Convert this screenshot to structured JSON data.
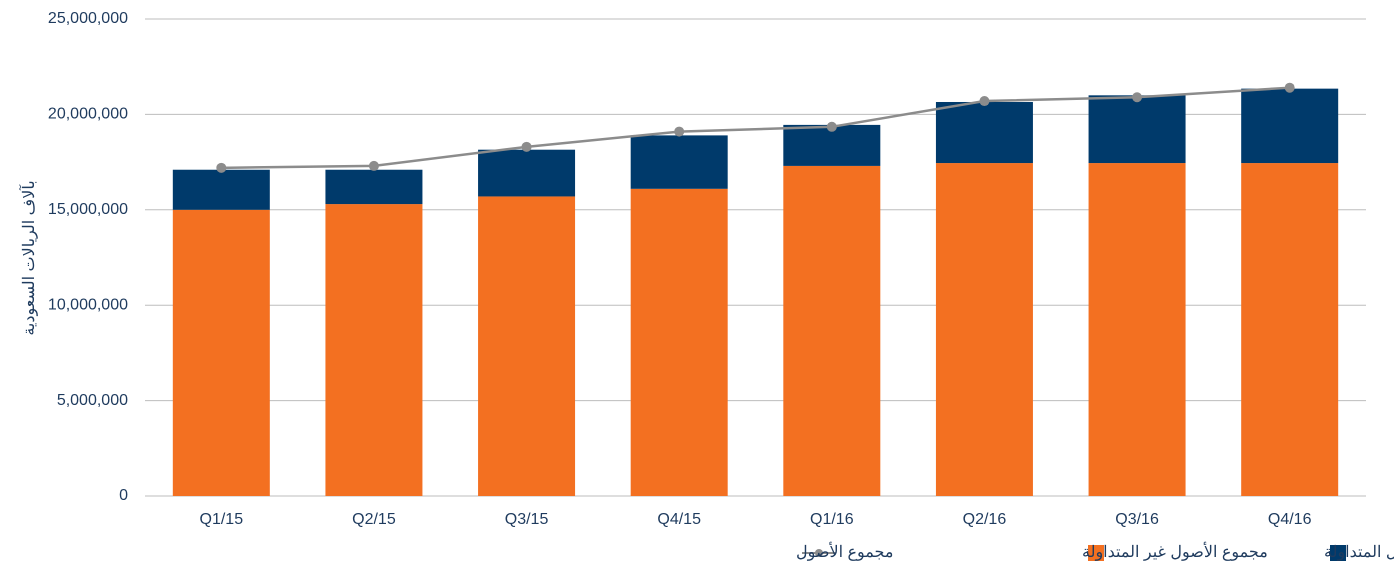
{
  "chart_data": {
    "type": "bar",
    "stacked": true,
    "y_label": "بآلاف الريالات السعودية",
    "categories": [
      "Q1/15",
      "Q2/15",
      "Q3/15",
      "Q4/15",
      "Q1/16",
      "Q2/16",
      "Q3/16",
      "Q4/16"
    ],
    "series": [
      {
        "name": "مجموع الأصول غير المتداولة",
        "color": "#f37021",
        "type": "bar",
        "values": [
          15000000,
          15300000,
          15700000,
          16100000,
          17300000,
          17450000,
          17450000,
          17450000
        ]
      },
      {
        "name": "مجموع الأصول المتداولة",
        "color": "#003a6b",
        "type": "bar",
        "values": [
          2100000,
          1800000,
          2450000,
          2800000,
          2150000,
          3200000,
          3550000,
          3900000
        ]
      },
      {
        "name": "مجموع الأصول",
        "color": "#8c8c8c",
        "type": "line",
        "values": [
          17200000,
          17300000,
          18300000,
          19100000,
          19350000,
          20700000,
          20900000,
          21400000
        ]
      }
    ],
    "ylim": [
      0,
      25000000
    ],
    "yticks": [
      0,
      {
        "value": 5000000,
        "label": "5,000,000"
      },
      {
        "value": 10000000,
        "label": "10,000,000"
      },
      {
        "value": 15000000,
        "label": "15,000,000"
      },
      {
        "value": 20000000,
        "label": "20,000,000"
      },
      {
        "value": 25000000,
        "label": "25,000,000"
      }
    ],
    "grid": true,
    "legend": "bottom"
  }
}
